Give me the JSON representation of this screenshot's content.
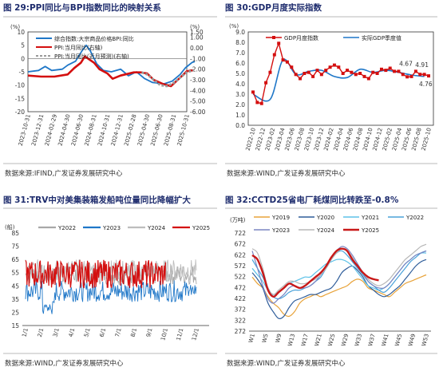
{
  "palette": {
    "title_text": "#1f2d6e",
    "rule": "#b8b8b8",
    "blue": "#1f77c8",
    "red": "#d40f0f",
    "gray": "#9a9a9a"
  },
  "chart_data": [
    {
      "type": "line",
      "title": "图 29:PPI同比与BPI指数同比的映射关系",
      "source": "数据来源:IFIND,广发证券发展研究中心",
      "ylabel_left": "(%)",
      "ylabel_right": "(%)",
      "ylim_left": [
        -20,
        10
      ],
      "yticks_left": [
        10,
        5,
        0,
        -5,
        -10,
        -15,
        -20
      ],
      "ylim_right": [
        -6,
        1.5
      ],
      "yticks_right": [
        "1.50",
        "1.00",
        "0.00",
        "-1.00",
        "-2.00",
        "-3.00",
        "-4.00",
        "-5.00",
        "-6.00"
      ],
      "xticks": [
        "2023-10-31",
        "2023-12-31",
        "2024-02-29",
        "2024-04-30",
        "2024-06-30",
        "2024-08-31",
        "2024-10-31",
        "2024-12-31",
        "2025-02-28",
        "2025-04-30",
        "2025-06-30",
        "2025-08-31",
        "2025-10-31"
      ],
      "series": [
        {
          "name": "综合指数:大宗商品价格BPI:同比",
          "axis": "left",
          "color": "#1f77c8",
          "points": [
            [
              0,
              -5
            ],
            [
              0.8,
              -4.5
            ],
            [
              1.3,
              -3
            ],
            [
              1.8,
              -4.5
            ],
            [
              2.6,
              -4
            ],
            [
              3,
              -2.5
            ],
            [
              3.6,
              -1
            ],
            [
              4.1,
              3
            ],
            [
              4.4,
              5
            ],
            [
              4.7,
              3
            ],
            [
              5.2,
              -2
            ],
            [
              5.7,
              -4.5
            ],
            [
              6.3,
              -5
            ],
            [
              7,
              -4
            ],
            [
              7.6,
              -6.5
            ],
            [
              8.2,
              -5
            ],
            [
              8.8,
              -7.5
            ],
            [
              9.4,
              -9
            ],
            [
              10.3,
              -9.5
            ],
            [
              10.9,
              -8.5
            ],
            [
              11.5,
              -6
            ],
            [
              11.9,
              -3.5
            ],
            [
              12.4,
              -1.5
            ],
            [
              12.6,
              -1.2
            ]
          ]
        },
        {
          "name": "PPI:当月同比(右轴)",
          "axis": "right",
          "color": "#d40f0f",
          "points": [
            [
              0,
              -2.6
            ],
            [
              1,
              -2.7
            ],
            [
              2,
              -2.7
            ],
            [
              3,
              -2.5
            ],
            [
              3.5,
              -1.9
            ],
            [
              4,
              -1.4
            ],
            [
              4.3,
              -0.8
            ],
            [
              5,
              -1.4
            ],
            [
              5.4,
              -2.0
            ],
            [
              6,
              -2.4
            ],
            [
              6.4,
              -2.9
            ],
            [
              7,
              -2.6
            ],
            [
              8,
              -2.3
            ],
            [
              8.5,
              -2.3
            ],
            [
              9,
              -2.4
            ],
            [
              9.5,
              -3.0
            ],
            [
              10.2,
              -3.4
            ],
            [
              10.8,
              -3.6
            ],
            [
              11.5,
              -2.8
            ],
            [
              12,
              -2.2
            ],
            [
              12.5,
              -2.1
            ]
          ]
        },
        {
          "name": "PPI:当月同比(近月预测)(右轴)",
          "axis": "right",
          "color": "#9a9a9a",
          "dashed": true,
          "points": [
            [
              8.6,
              -2.3
            ],
            [
              9,
              -2.5
            ],
            [
              9.5,
              -3.0
            ],
            [
              10,
              -3.5
            ],
            [
              10.5,
              -3.6
            ],
            [
              11,
              -3.3
            ],
            [
              11.5,
              -2.8
            ],
            [
              12,
              -2.3
            ],
            [
              12.5,
              -2.1
            ]
          ]
        }
      ]
    },
    {
      "type": "line",
      "title": "图 30:GDP月度实际指数",
      "source": "数据来源:WIND,广发证券发展研究中心",
      "ylabel": "(%)",
      "ylim": [
        0,
        9
      ],
      "yticks": [
        "9.0",
        "8.0",
        "7.0",
        "6.0",
        "5.0",
        "4.0",
        "3.0",
        "2.0",
        "1.0",
        "0.0"
      ],
      "xticks": [
        "2022-10",
        "2022-12",
        "2023-02",
        "2023-04",
        "2023-06",
        "2023-08",
        "2023-10",
        "2023-12",
        "2024-02",
        "2024-04",
        "2024-06",
        "2024-08",
        "2024-10",
        "2024-12",
        "2025-02",
        "2025-04",
        "2025-06",
        "2025-08",
        "2025-10"
      ],
      "series": [
        {
          "name": "GDP月度指数",
          "color": "#d40f0f",
          "markers": true,
          "values": [
            3.2,
            2.2,
            2.1,
            4.1,
            5.1,
            6.8,
            7.9,
            6.3,
            6.1,
            5.6,
            4.9,
            4.5,
            5.0,
            5.1,
            4.7,
            5.3,
            4.9,
            5.3,
            5.6,
            5.8,
            5.6,
            5.0,
            5.3,
            5.1,
            4.9,
            5.0,
            4.7,
            4.5,
            5.1,
            5.0,
            5.4,
            5.3,
            5.5,
            5.2,
            5.2,
            4.9,
            4.67,
            4.7,
            5.2,
            4.91,
            4.9,
            4.76
          ]
        },
        {
          "name": "实际GDP季度值",
          "color": "#1f77c8",
          "smooth": true,
          "points": [
            [
              0,
              3.0
            ],
            [
              4,
              2.5
            ],
            [
              7,
              6.3
            ],
            [
              10,
              4.9
            ],
            [
              13,
              5.2
            ],
            [
              16,
              5.3
            ],
            [
              19,
              4.7
            ],
            [
              22,
              4.6
            ],
            [
              25,
              5.4
            ],
            [
              28,
              5.1
            ],
            [
              31,
              5.3
            ],
            [
              34,
              5.1
            ],
            [
              37,
              4.85
            ],
            [
              40,
              4.7
            ]
          ]
        }
      ],
      "annotations": [
        "4.67",
        "4.91",
        "4.76"
      ]
    },
    {
      "type": "line",
      "title": "图 31:TRV中对美集装箱发船吨位量同比降幅扩大",
      "source": "数据来源:WIND,广发证券发展研究中心",
      "ylabel": "(船)",
      "ylim": [
        15,
        85
      ],
      "yticks": [
        85,
        75,
        65,
        55,
        45,
        35,
        25,
        15
      ],
      "xticks": [
        "1/1",
        "2/1",
        "3/1",
        "4/1",
        "5/1",
        "6/1",
        "7/1",
        "8/1",
        "9/1",
        "10/1",
        "11/1",
        "12/1"
      ],
      "series": [
        {
          "name": "Y2022",
          "color": "#a8a8a8",
          "band": [
            45,
            62
          ]
        },
        {
          "name": "Y2023",
          "color": "#1f77c8",
          "band": [
            32,
            50
          ]
        },
        {
          "name": "Y2024",
          "color": "#bdbdbd",
          "band": [
            48,
            66
          ]
        },
        {
          "name": "Y2025",
          "color": "#d40f0f",
          "band": [
            42,
            66
          ]
        }
      ]
    },
    {
      "type": "line",
      "title": "图 32:CCTD25省电厂耗煤同比转跌至-0.8%",
      "source": "数据来源:WIND,广发证券发展研究中心",
      "ylabel": "(万吨)",
      "ylim": [
        272,
        722
      ],
      "yticks": [
        722,
        672,
        622,
        572,
        522,
        472,
        422,
        372,
        322,
        272
      ],
      "xticks": [
        "W1",
        "W5",
        "W9",
        "W13",
        "W17",
        "W21",
        "W25",
        "W29",
        "W33",
        "W37",
        "W41",
        "W45",
        "W49",
        "W53"
      ],
      "series": [
        {
          "name": "Y2019",
          "color": "#e8a33a",
          "values": [
            520,
            490,
            470,
            430,
            400,
            380,
            350,
            340,
            360,
            400,
            420,
            430,
            440,
            430,
            440,
            450,
            460,
            470,
            480,
            500,
            510,
            500,
            470,
            460,
            450,
            440,
            430,
            450,
            470,
            490,
            500,
            510,
            520,
            530
          ]
        },
        {
          "name": "Y2020",
          "color": "#2f5d9a",
          "values": [
            540,
            510,
            470,
            400,
            360,
            330,
            340,
            380,
            410,
            420,
            430,
            440,
            440,
            450,
            460,
            470,
            500,
            540,
            560,
            570,
            550,
            520,
            480,
            460,
            440,
            430,
            440,
            460,
            480,
            510,
            540,
            570,
            590,
            600
          ]
        },
        {
          "name": "Y2021",
          "color": "#5dc2e8",
          "values": [
            560,
            530,
            500,
            460,
            440,
            450,
            470,
            490,
            500,
            510,
            520,
            520,
            540,
            560,
            580,
            590,
            600,
            600,
            590,
            570,
            540,
            510,
            480,
            470,
            460,
            470,
            490,
            520,
            550,
            580,
            600,
            620,
            630,
            630
          ]
        },
        {
          "name": "Y2022",
          "color": "#4aa2d9",
          "values": [
            600,
            560,
            520,
            470,
            430,
            420,
            430,
            450,
            460,
            460,
            470,
            480,
            500,
            520,
            560,
            600,
            630,
            640,
            620,
            590,
            560,
            530,
            500,
            480,
            460,
            450,
            470,
            500,
            530,
            560,
            590,
            610,
            630,
            640
          ]
        },
        {
          "name": "Y2023",
          "color": "#7b86c2",
          "values": [
            640,
            560,
            480,
            420,
            400,
            420,
            440,
            470,
            480,
            470,
            470,
            480,
            500,
            530,
            560,
            600,
            640,
            660,
            650,
            620,
            580,
            540,
            500,
            480,
            470,
            470,
            490,
            520,
            550,
            580,
            600,
            620,
            630,
            640
          ]
        },
        {
          "name": "Y2024",
          "color": "#b7b7b7",
          "values": [
            650,
            630,
            560,
            470,
            440,
            460,
            480,
            500,
            500,
            490,
            490,
            500,
            510,
            530,
            560,
            600,
            630,
            650,
            640,
            610,
            570,
            540,
            510,
            490,
            480,
            490,
            510,
            540,
            570,
            600,
            620,
            640,
            660,
            670
          ]
        },
        {
          "name": "Y2025",
          "color": "#c81818",
          "bold": true,
          "values": [
            620,
            600,
            540,
            460,
            430,
            450,
            470,
            490,
            480,
            470,
            480,
            500,
            520,
            540,
            570,
            610,
            640,
            650,
            640,
            600,
            570,
            540,
            520,
            510,
            505
          ]
        }
      ]
    }
  ]
}
